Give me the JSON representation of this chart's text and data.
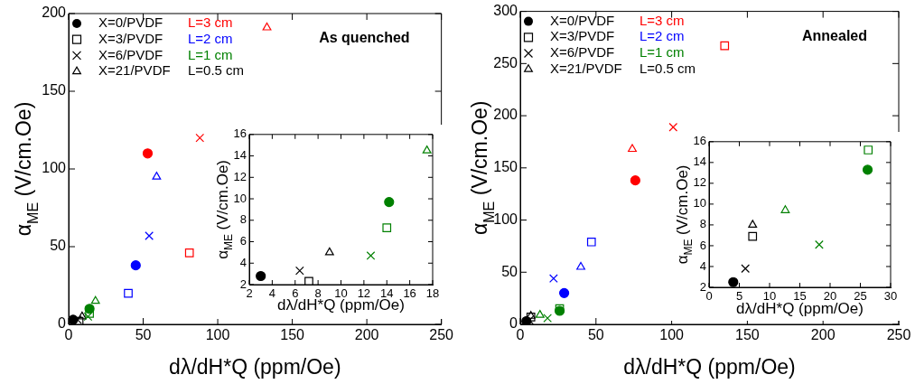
{
  "chart_data": [
    {
      "type": "scatter",
      "title": "As quenched",
      "xlabel": "dλ/dH*Q (ppm/Oe)",
      "ylabel": "α$_{ME}$ (V/cm.Oe)",
      "xlim": [
        0,
        250
      ],
      "xticks": [
        0,
        50,
        100,
        150,
        200,
        250
      ],
      "ylim": [
        0,
        200
      ],
      "yticks": [
        0,
        50,
        100,
        150,
        200
      ],
      "grid": false,
      "legend": "top left",
      "annotations": [
        "L=3 cm",
        "L=2 cm",
        "L=1 cm",
        "L=0.5 cm"
      ],
      "series": [
        {
          "name": "X=0/PVDF",
          "marker": "circle",
          "color": "#000000",
          "x": [
            53,
            45,
            14,
            3
          ],
          "values": [
            110,
            38,
            10,
            3
          ],
          "colors": [
            "#ff0000",
            "#0000ff",
            "#008000",
            "#000000"
          ]
        },
        {
          "name": "X=3/PVDF",
          "marker": "square",
          "color": "#000000",
          "x": [
            81,
            40,
            14,
            7
          ],
          "values": [
            46,
            20,
            7,
            2
          ],
          "colors": [
            "#ff0000",
            "#0000ff",
            "#008000",
            "#000000"
          ]
        },
        {
          "name": "X=6/PVDF",
          "marker": "cross",
          "color": "#000000",
          "x": [
            88,
            54,
            13,
            6
          ],
          "values": [
            120,
            57,
            5,
            3
          ],
          "colors": [
            "#ff0000",
            "#0000ff",
            "#008000",
            "#000000"
          ]
        },
        {
          "name": "X=21/PVDF",
          "marker": "triangle",
          "color": "#000000",
          "x": [
            133,
            59,
            18,
            9
          ],
          "values": [
            191,
            95,
            15,
            5
          ],
          "colors": [
            "#ff0000",
            "#0000ff",
            "#008000",
            "#000000"
          ]
        }
      ]
    },
    {
      "type": "scatter",
      "xlabel": "dλ/dH*Q (ppm/Oe)",
      "ylabel": "α$_{ME}$ (V/cm.Oe)",
      "xlim": [
        2,
        18
      ],
      "xticks": [
        2,
        4,
        6,
        8,
        10,
        12,
        14,
        16,
        18
      ],
      "ylim": [
        2,
        16
      ],
      "yticks": [
        2,
        4,
        6,
        8,
        10,
        12,
        14,
        16
      ],
      "grid": false,
      "series": [
        {
          "marker": "circle",
          "x": [
            14.2,
            3
          ],
          "values": [
            9.7,
            2.8
          ],
          "colors": [
            "#008000",
            "#000000"
          ]
        },
        {
          "marker": "square",
          "x": [
            14,
            7.2
          ],
          "values": [
            7.3,
            2.3
          ],
          "colors": [
            "#008000",
            "#000000"
          ]
        },
        {
          "marker": "cross",
          "x": [
            12.6,
            6.4
          ],
          "values": [
            4.7,
            3.3
          ],
          "colors": [
            "#008000",
            "#000000"
          ]
        },
        {
          "marker": "triangle",
          "x": [
            17.5,
            9
          ],
          "values": [
            14.5,
            5
          ],
          "colors": [
            "#008000",
            "#000000"
          ]
        }
      ]
    },
    {
      "type": "scatter",
      "title": "Annealed",
      "xlabel": "dλ/dH*Q (ppm/Oe)",
      "ylabel": "α$_{ME}$ (V/cm.Oe)",
      "xlim": [
        0,
        250
      ],
      "xticks": [
        0,
        50,
        100,
        150,
        200,
        250
      ],
      "ylim": [
        0,
        300
      ],
      "yticks": [
        0,
        50,
        100,
        150,
        200,
        250,
        300
      ],
      "grid": false,
      "legend": "top left",
      "annotations": [
        "L=3 cm",
        "L=2 cm",
        "L=1 cm",
        "L=0.5 cm"
      ],
      "series": [
        {
          "name": "X=0/PVDF",
          "marker": "circle",
          "color": "#000000",
          "x": [
            76,
            29,
            26,
            4
          ],
          "values": [
            138,
            30,
            13,
            3
          ],
          "colors": [
            "#ff0000",
            "#0000ff",
            "#008000",
            "#000000"
          ]
        },
        {
          "name": "X=3/PVDF",
          "marker": "square",
          "color": "#000000",
          "x": [
            135,
            47,
            26,
            7
          ],
          "values": [
            267,
            79,
            15,
            7
          ],
          "colors": [
            "#ff0000",
            "#0000ff",
            "#008000",
            "#000000"
          ]
        },
        {
          "name": "X=6/PVDF",
          "marker": "cross",
          "color": "#000000",
          "x": [
            101,
            22,
            18,
            6
          ],
          "values": [
            189,
            44,
            6,
            4
          ],
          "colors": [
            "#ff0000",
            "#0000ff",
            "#008000",
            "#000000"
          ]
        },
        {
          "name": "X=21/PVDF",
          "marker": "triangle",
          "color": "#000000",
          "x": [
            74,
            40,
            13,
            7
          ],
          "values": [
            168,
            55,
            9,
            8
          ],
          "colors": [
            "#ff0000",
            "#0000ff",
            "#008000",
            "#000000"
          ]
        }
      ]
    },
    {
      "type": "scatter",
      "xlabel": "dλ/dH*Q (ppm/Oe)",
      "ylabel": "α$_{ME}$ (V/cm.Oe)",
      "xlim": [
        0,
        30
      ],
      "xticks": [
        0,
        5,
        10,
        15,
        20,
        25,
        30
      ],
      "ylim": [
        2,
        16
      ],
      "yticks": [
        2,
        4,
        6,
        8,
        10,
        12,
        14,
        16
      ],
      "grid": false,
      "series": [
        {
          "marker": "circle",
          "x": [
            26.2,
            4
          ],
          "values": [
            13.3,
            2.5
          ],
          "colors": [
            "#008000",
            "#000000"
          ]
        },
        {
          "marker": "square",
          "x": [
            26.3,
            7.2
          ],
          "values": [
            15.2,
            6.9
          ],
          "colors": [
            "#008000",
            "#000000"
          ]
        },
        {
          "marker": "cross",
          "x": [
            18.2,
            6
          ],
          "values": [
            6.1,
            3.8
          ],
          "colors": [
            "#008000",
            "#000000"
          ]
        },
        {
          "marker": "triangle",
          "x": [
            12.6,
            7.2
          ],
          "values": [
            9.4,
            8
          ],
          "colors": [
            "#008000",
            "#000000"
          ]
        }
      ]
    }
  ]
}
